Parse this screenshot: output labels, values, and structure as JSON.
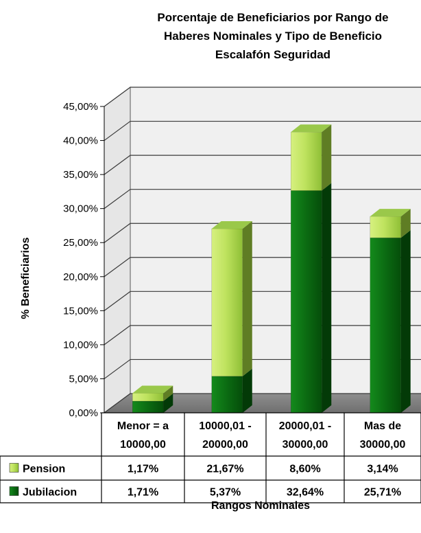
{
  "chart_data": {
    "type": "bar",
    "stacked": true,
    "title_lines": [
      "Porcentaje de Beneficiarios por Rango de",
      "Haberes Nominales y Tipo de Beneficio",
      "Escalafón Seguridad"
    ],
    "ylabel": "% Beneficiarios",
    "xlabel": "Rangos Nominales",
    "ylim": [
      0,
      45
    ],
    "y_ticks": [
      "0,00%",
      "5,00%",
      "10,00%",
      "15,00%",
      "20,00%",
      "25,00%",
      "30,00%",
      "35,00%",
      "40,00%",
      "45,00%"
    ],
    "categories": [
      [
        "Menor = a",
        "10000,00"
      ],
      [
        "10000,01 -",
        "20000,00"
      ],
      [
        "20000,01 -",
        "30000,00"
      ],
      [
        "Mas de",
        "30000,00"
      ]
    ],
    "series": [
      {
        "name": "Jubilacion",
        "values": [
          1.71,
          5.37,
          32.64,
          25.71
        ],
        "labels": [
          "1,71%",
          "5,37%",
          "32,64%",
          "25,71%"
        ],
        "color": "#0b6b12"
      },
      {
        "name": "Pension",
        "values": [
          1.17,
          21.67,
          8.6,
          3.14
        ],
        "labels": [
          "1,17%",
          "21,67%",
          "8,60%",
          "3,14%"
        ],
        "color": "#b5dd58"
      }
    ],
    "table_order": [
      "Pension",
      "Jubilacion"
    ],
    "grid": true,
    "legend": "data-table"
  }
}
